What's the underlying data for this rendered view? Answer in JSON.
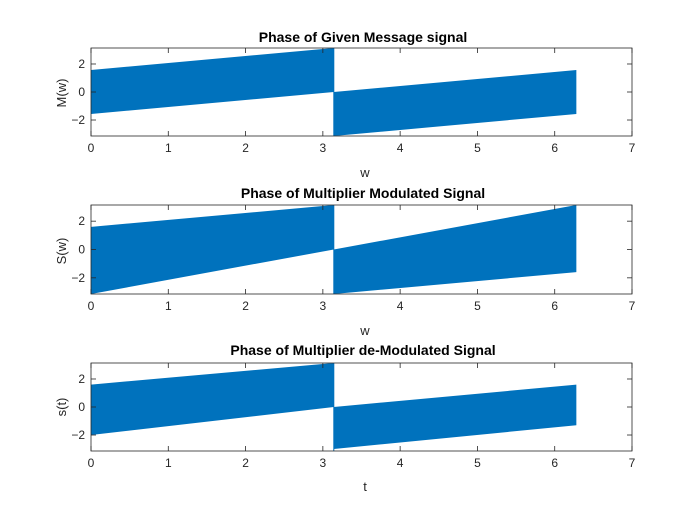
{
  "chart_data": [
    {
      "type": "line",
      "title": "Phase of Given Message signal",
      "xlabel": "w",
      "ylabel": "M(w)",
      "xlim": [
        0,
        7
      ],
      "ylim": [
        -3.14159,
        3.14159
      ],
      "xticks": [
        0,
        1,
        2,
        3,
        4,
        5,
        6,
        7
      ],
      "yticks": [
        -2,
        0,
        2
      ],
      "grid": false,
      "color": "#0072BD",
      "series": [
        {
          "x": [
            0,
            3.14159
          ],
          "y_upper": [
            1.57,
            3.14
          ],
          "y_lower": [
            -1.57,
            0.0
          ]
        },
        {
          "x": [
            3.14159,
            6.28
          ],
          "y_upper": [
            0.0,
            1.57
          ],
          "y_lower": [
            -3.14,
            -1.57
          ]
        }
      ]
    },
    {
      "type": "line",
      "title": "Phase of Multiplier Modulated Signal",
      "xlabel": "w",
      "ylabel": "S(w)",
      "xlim": [
        0,
        7
      ],
      "ylim": [
        -3.14159,
        3.14159
      ],
      "xticks": [
        0,
        1,
        2,
        3,
        4,
        5,
        6,
        7
      ],
      "yticks": [
        -2,
        0,
        2
      ],
      "grid": false,
      "color": "#0072BD",
      "series": [
        {
          "x": [
            0,
            3.14159
          ],
          "y_upper": [
            1.6,
            3.14
          ],
          "y_lower": [
            -3.14,
            0.0
          ]
        },
        {
          "x": [
            3.14159,
            6.28
          ],
          "y_upper": [
            0.0,
            3.14
          ],
          "y_lower": [
            -3.14,
            -1.6
          ]
        }
      ]
    },
    {
      "type": "line",
      "title": "Phase of Multiplier de-Modulated Signal",
      "xlabel": "t",
      "ylabel": "s(t)",
      "xlim": [
        0,
        7
      ],
      "ylim": [
        -3.14159,
        3.14159
      ],
      "xticks": [
        0,
        1,
        2,
        3,
        4,
        5,
        6,
        7
      ],
      "yticks": [
        -2,
        0,
        2
      ],
      "grid": false,
      "color": "#0072BD",
      "series": [
        {
          "x": [
            0,
            3.14159
          ],
          "y_upper": [
            1.6,
            3.14
          ],
          "y_lower": [
            -2.0,
            0.0
          ]
        },
        {
          "x": [
            3.14159,
            6.28
          ],
          "y_upper": [
            0.0,
            1.6
          ],
          "y_lower": [
            -3.0,
            -1.3
          ]
        }
      ]
    }
  ]
}
